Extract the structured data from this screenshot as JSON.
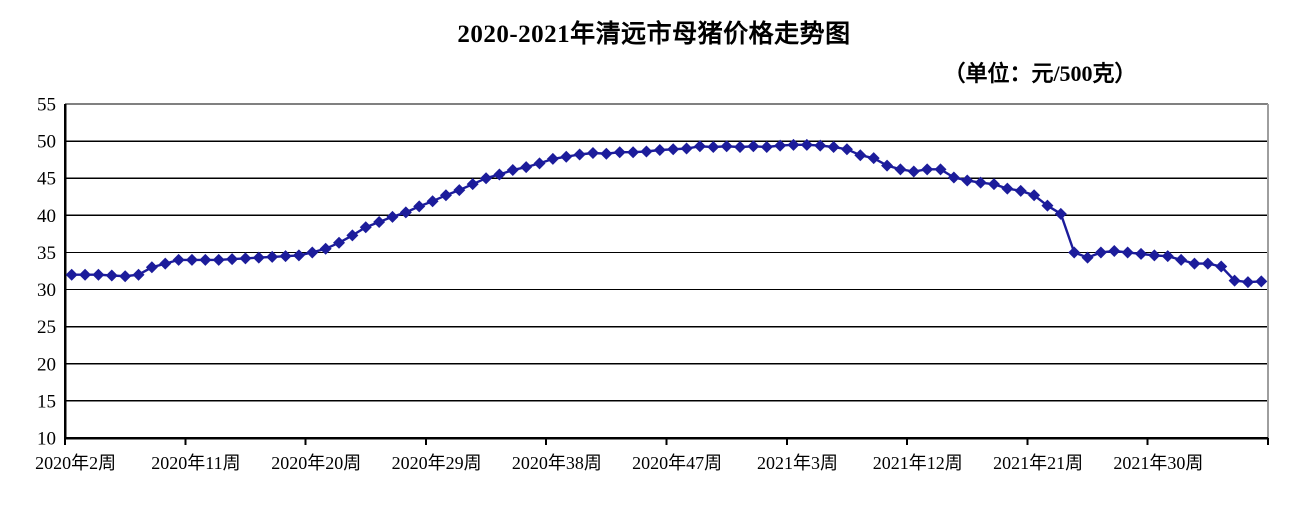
{
  "title": "2020-2021年清远市母猪价格走势图",
  "unit_label": "（单位：元/500克）",
  "colors": {
    "series": "#1c1c9b",
    "gridline": "#000000",
    "axis": "#000000",
    "plot_border_right": "#9e9e9e",
    "background": "#ffffff"
  },
  "chart_data": {
    "type": "line",
    "title": "2020-2021年清远市母猪价格走势图",
    "unit": "元/500克",
    "marker": "diamond",
    "legend": "none",
    "grid": "horizontal",
    "ylim": [
      10,
      55
    ],
    "y_ticks": [
      10,
      15,
      20,
      25,
      30,
      35,
      40,
      45,
      50,
      55
    ],
    "x_axis": {
      "tick_labels": [
        "2020年2周",
        "2020年11周",
        "2020年20周",
        "2020年29周",
        "2020年38周",
        "2020年47周",
        "2021年3周",
        "2021年12周",
        "2021年21周",
        "2021年30周"
      ],
      "tick_label_start_index": 0,
      "tick_label_interval": 9,
      "total_points": 90,
      "description": "weekly data from 2020 week 2 through 2021 week 38"
    },
    "values": [
      32.0,
      32.0,
      32.0,
      31.9,
      31.8,
      32.0,
      33.0,
      33.5,
      34.0,
      34.0,
      34.0,
      34.0,
      34.1,
      34.2,
      34.3,
      34.4,
      34.5,
      34.6,
      35.0,
      35.5,
      36.3,
      37.3,
      38.4,
      39.1,
      39.8,
      40.4,
      41.2,
      41.9,
      42.7,
      43.4,
      44.2,
      45.0,
      45.5,
      46.1,
      46.5,
      47.0,
      47.6,
      47.9,
      48.2,
      48.4,
      48.3,
      48.5,
      48.5,
      48.6,
      48.8,
      48.9,
      49.0,
      49.3,
      49.2,
      49.3,
      49.2,
      49.3,
      49.2,
      49.4,
      49.5,
      49.5,
      49.4,
      49.2,
      48.9,
      48.1,
      47.7,
      46.7,
      46.2,
      45.9,
      46.2,
      46.2,
      45.1,
      44.7,
      44.4,
      44.2,
      43.6,
      43.3,
      42.7,
      41.3,
      40.2,
      35.0,
      34.3,
      35.0,
      35.2,
      35.0,
      34.8,
      34.6,
      34.5,
      34.0,
      33.5,
      33.5,
      33.1,
      31.2,
      31.0,
      31.1
    ]
  }
}
